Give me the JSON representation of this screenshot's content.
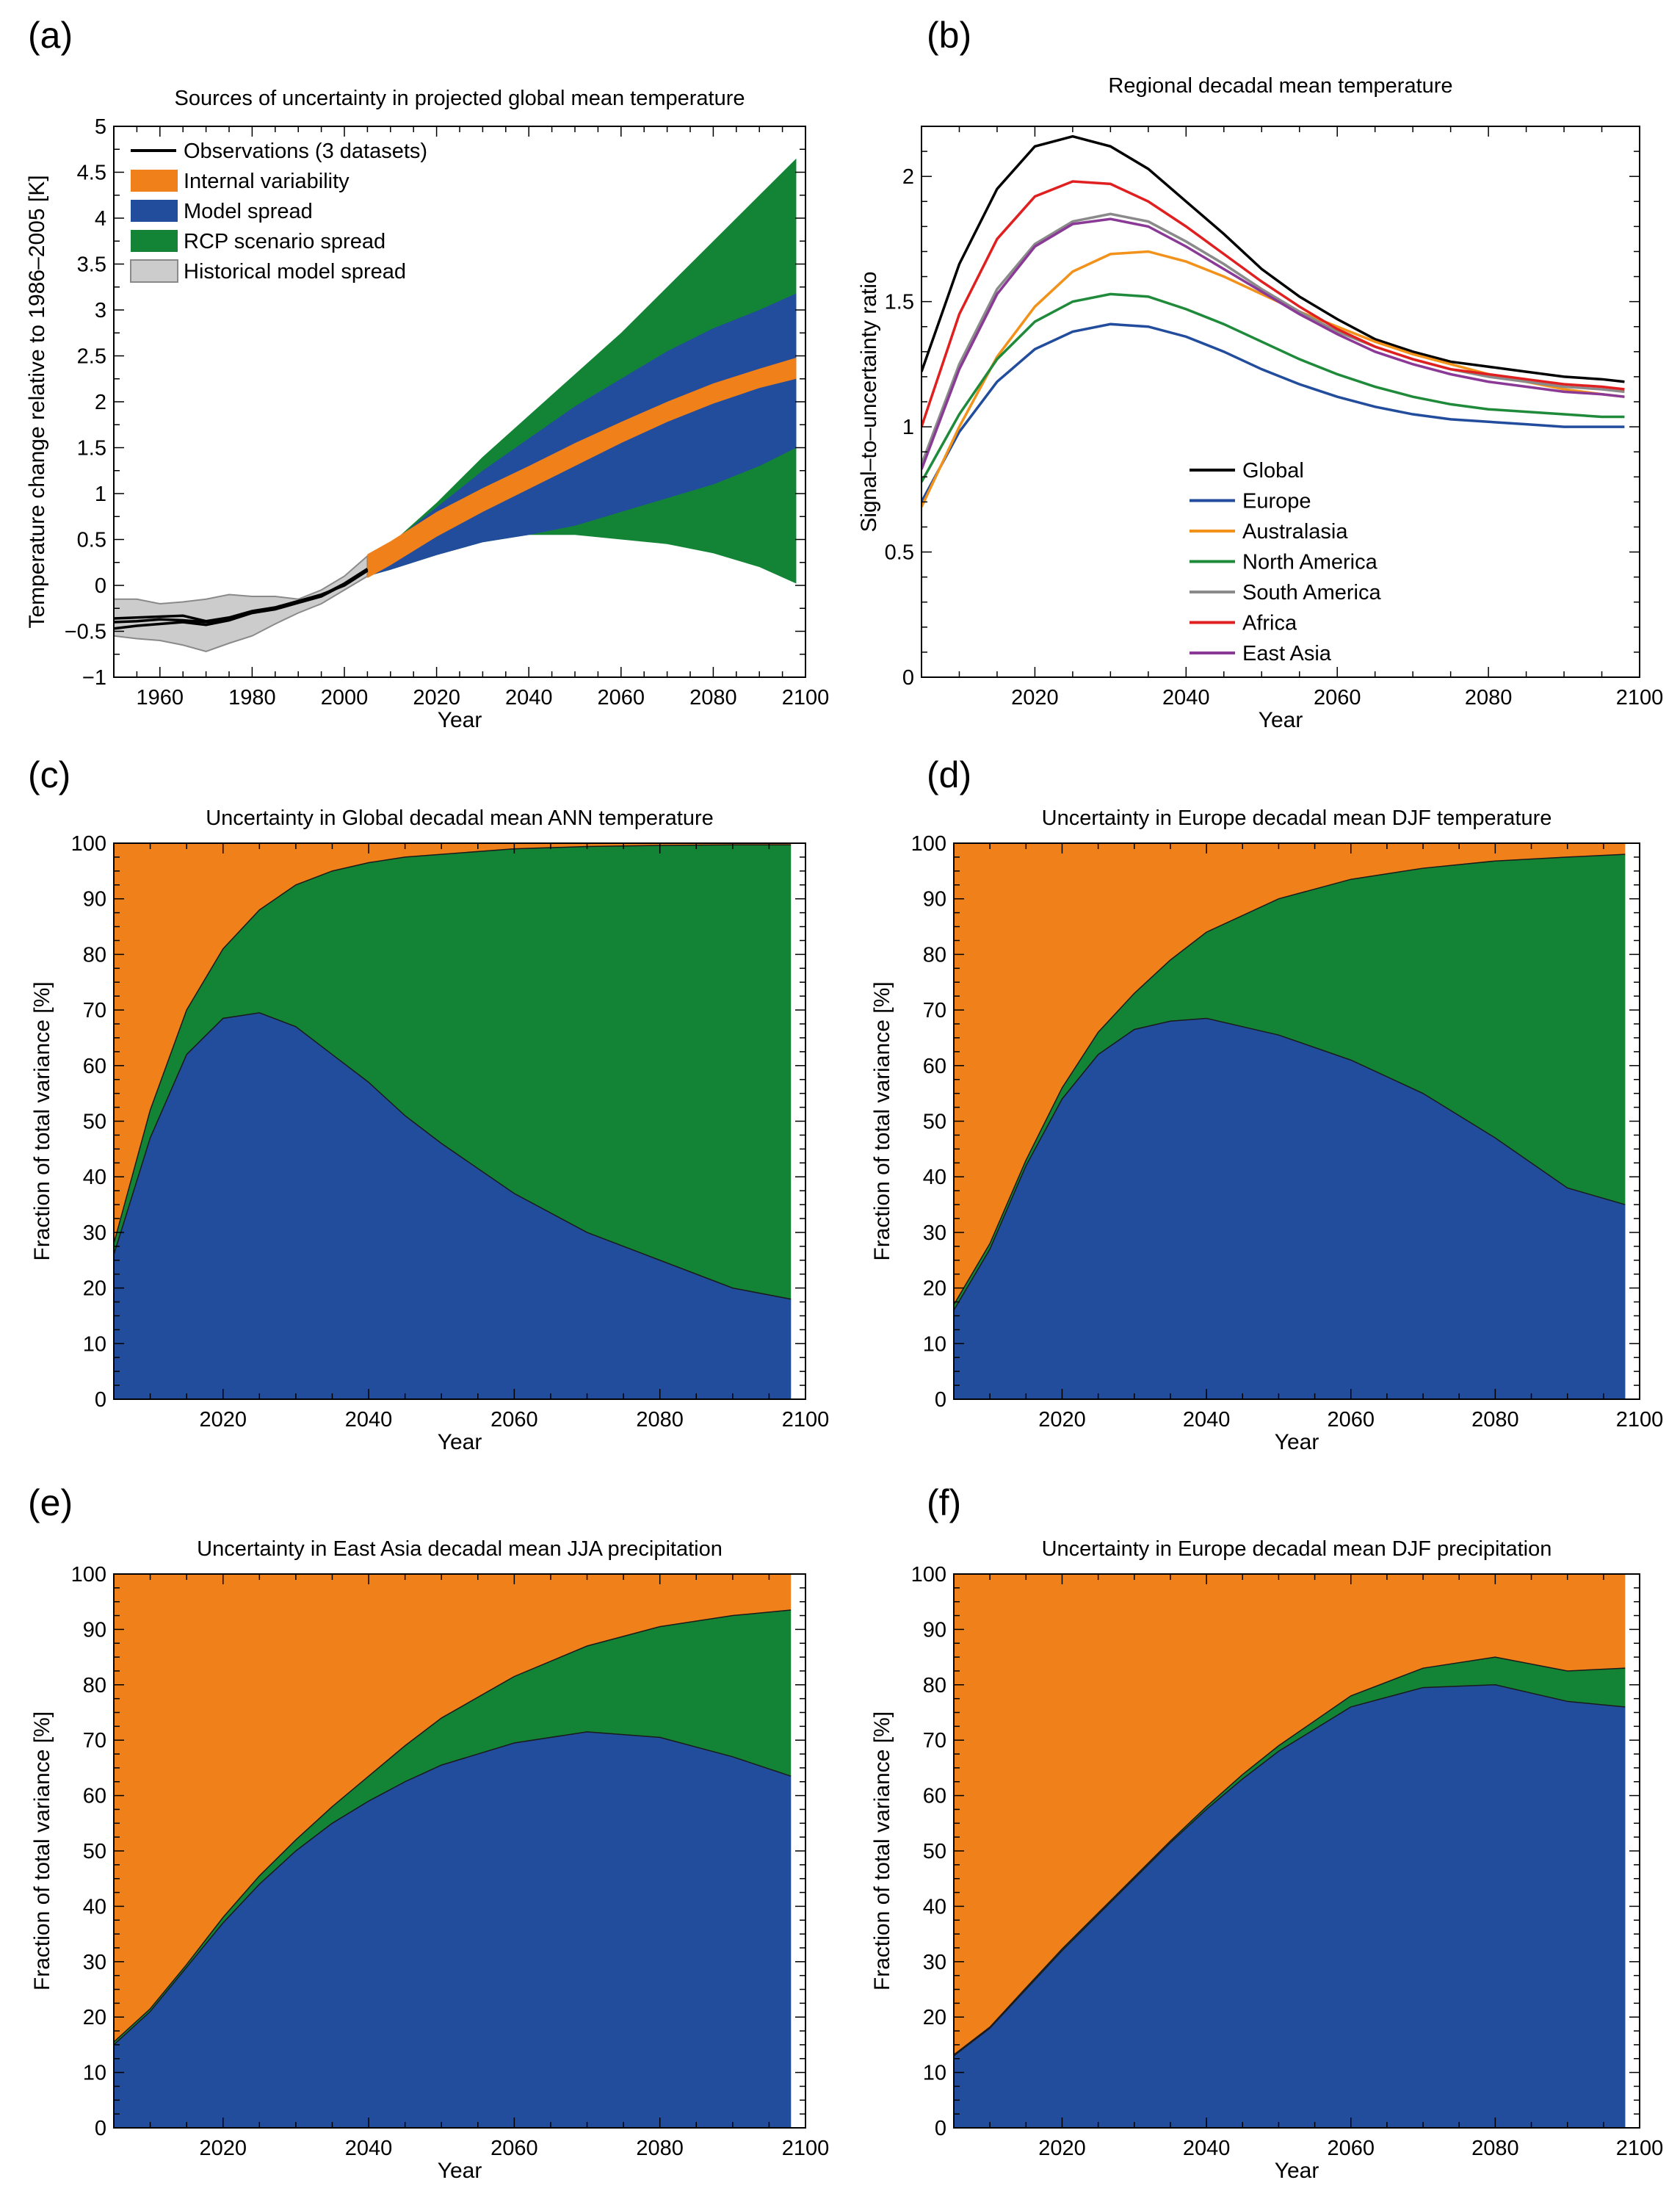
{
  "colors": {
    "internal": "#f0801a",
    "model": "#224c9c",
    "scenario": "#138436",
    "historical_fill": "#cccccc",
    "historical_edge": "#8a8a8a",
    "observations": "#000000",
    "global": "#000000",
    "europe": "#224c9c",
    "australasia": "#f2921a",
    "north_america": "#1e8a3a",
    "south_america": "#8a8a8a",
    "africa": "#e02020",
    "east_asia": "#8a3a96"
  },
  "chart_data": [
    {
      "id": "a",
      "panel_label": "(a)",
      "type": "area",
      "title": "Sources of uncertainty in projected global mean temperature",
      "xlabel": "Year",
      "ylabel": "Temperature change relative to 1986–2005 [K]",
      "xlim": [
        1950,
        2100
      ],
      "ylim": [
        -1,
        5
      ],
      "xticks": [
        1960,
        1980,
        2000,
        2020,
        2040,
        2060,
        2080,
        2100
      ],
      "yticks": [
        -1,
        -0.5,
        0,
        0.5,
        1,
        1.5,
        2,
        2.5,
        3,
        3.5,
        4,
        4.5,
        5
      ],
      "ytick_labels": [
        "−1",
        "−0.5",
        "0",
        "0.5",
        "1",
        "1.5",
        "2",
        "2.5",
        "3",
        "3.5",
        "4",
        "4.5",
        "5"
      ],
      "legend_position": "top-left",
      "legend": [
        "Observations (3 datasets)",
        "Internal variability",
        "Model spread",
        "RCP scenario spread",
        "Historical model spread"
      ],
      "historical": {
        "x": [
          1950,
          1955,
          1960,
          1965,
          1970,
          1975,
          1980,
          1985,
          1990,
          1995,
          2000,
          2005
        ],
        "lower": [
          -0.55,
          -0.58,
          -0.6,
          -0.65,
          -0.72,
          -0.63,
          -0.55,
          -0.42,
          -0.3,
          -0.2,
          -0.05,
          0.1
        ],
        "upper": [
          -0.15,
          -0.15,
          -0.2,
          -0.18,
          -0.15,
          -0.1,
          -0.12,
          -0.12,
          -0.15,
          -0.05,
          0.1,
          0.32
        ]
      },
      "observations": {
        "x": [
          1950,
          1955,
          1960,
          1965,
          1970,
          1975,
          1980,
          1985,
          1990,
          1995,
          2000,
          2005
        ],
        "series": [
          [
            -0.36,
            -0.35,
            -0.34,
            -0.33,
            -0.39,
            -0.35,
            -0.28,
            -0.24,
            -0.17,
            -0.1,
            0.0,
            0.16
          ],
          [
            -0.4,
            -0.39,
            -0.37,
            -0.38,
            -0.4,
            -0.37,
            -0.3,
            -0.25,
            -0.18,
            -0.11,
            0.02,
            0.18
          ],
          [
            -0.47,
            -0.44,
            -0.42,
            -0.4,
            -0.43,
            -0.38,
            -0.3,
            -0.26,
            -0.19,
            -0.12,
            0.01,
            0.17
          ]
        ]
      },
      "projection": {
        "x": [
          2005,
          2010,
          2020,
          2030,
          2040,
          2050,
          2060,
          2070,
          2080,
          2090,
          2098
        ],
        "scenario_lower": [
          0.1,
          0.17,
          0.33,
          0.47,
          0.55,
          0.55,
          0.5,
          0.45,
          0.35,
          0.2,
          0.02
        ],
        "scenario_upper": [
          0.3,
          0.45,
          0.9,
          1.4,
          1.85,
          2.3,
          2.75,
          3.25,
          3.75,
          4.25,
          4.65
        ],
        "model_lower": [
          0.1,
          0.17,
          0.33,
          0.47,
          0.55,
          0.65,
          0.8,
          0.95,
          1.1,
          1.3,
          1.5
        ],
        "model_upper": [
          0.3,
          0.45,
          0.85,
          1.25,
          1.6,
          1.95,
          2.25,
          2.55,
          2.8,
          3.0,
          3.18
        ],
        "internal_lower": [
          0.08,
          0.22,
          0.53,
          0.8,
          1.05,
          1.3,
          1.55,
          1.78,
          1.98,
          2.15,
          2.25
        ],
        "internal_upper": [
          0.34,
          0.48,
          0.8,
          1.06,
          1.3,
          1.55,
          1.78,
          2.0,
          2.2,
          2.36,
          2.48
        ]
      }
    },
    {
      "id": "b",
      "panel_label": "(b)",
      "type": "line",
      "title": "Regional decadal mean temperature",
      "xlabel": "Year",
      "ylabel": "Signal–to–uncertainty ratio",
      "xlim": [
        2005,
        2100
      ],
      "ylim": [
        0,
        2.2
      ],
      "xticks": [
        2020,
        2040,
        2060,
        2080,
        2100
      ],
      "yticks": [
        0,
        0.5,
        1,
        1.5,
        2
      ],
      "ytick_labels": [
        "0",
        "0.5",
        "1",
        "1.5",
        "2"
      ],
      "legend_position": "bottom-center",
      "x": [
        2005,
        2010,
        2015,
        2020,
        2025,
        2030,
        2035,
        2040,
        2045,
        2050,
        2055,
        2060,
        2065,
        2070,
        2075,
        2080,
        2085,
        2090,
        2095,
        2098
      ],
      "series": [
        {
          "name": "Global",
          "color": "global",
          "values": [
            1.22,
            1.65,
            1.95,
            2.12,
            2.16,
            2.12,
            2.03,
            1.9,
            1.77,
            1.63,
            1.52,
            1.43,
            1.35,
            1.3,
            1.26,
            1.24,
            1.22,
            1.2,
            1.19,
            1.18
          ]
        },
        {
          "name": "Europe",
          "color": "europe",
          "values": [
            0.7,
            0.98,
            1.18,
            1.31,
            1.38,
            1.41,
            1.4,
            1.36,
            1.3,
            1.23,
            1.17,
            1.12,
            1.08,
            1.05,
            1.03,
            1.02,
            1.01,
            1.0,
            1.0,
            1.0
          ]
        },
        {
          "name": "Australasia",
          "color": "australasia",
          "values": [
            0.68,
            1.0,
            1.28,
            1.48,
            1.62,
            1.69,
            1.7,
            1.66,
            1.6,
            1.53,
            1.46,
            1.4,
            1.34,
            1.29,
            1.25,
            1.21,
            1.18,
            1.15,
            1.13,
            1.12
          ]
        },
        {
          "name": "North America",
          "color": "north_america",
          "values": [
            0.78,
            1.05,
            1.27,
            1.42,
            1.5,
            1.53,
            1.52,
            1.47,
            1.41,
            1.34,
            1.27,
            1.21,
            1.16,
            1.12,
            1.09,
            1.07,
            1.06,
            1.05,
            1.04,
            1.04
          ]
        },
        {
          "name": "South America",
          "color": "south_america",
          "values": [
            0.85,
            1.25,
            1.55,
            1.73,
            1.82,
            1.85,
            1.82,
            1.74,
            1.65,
            1.55,
            1.46,
            1.38,
            1.32,
            1.27,
            1.23,
            1.2,
            1.18,
            1.16,
            1.15,
            1.14
          ]
        },
        {
          "name": "Africa",
          "color": "africa",
          "values": [
            1.0,
            1.45,
            1.75,
            1.92,
            1.98,
            1.97,
            1.9,
            1.8,
            1.69,
            1.58,
            1.48,
            1.39,
            1.32,
            1.27,
            1.23,
            1.21,
            1.19,
            1.17,
            1.16,
            1.15
          ]
        },
        {
          "name": "East Asia",
          "color": "east_asia",
          "values": [
            0.83,
            1.23,
            1.53,
            1.72,
            1.81,
            1.83,
            1.8,
            1.72,
            1.63,
            1.54,
            1.45,
            1.37,
            1.3,
            1.25,
            1.21,
            1.18,
            1.16,
            1.14,
            1.13,
            1.12
          ]
        }
      ]
    },
    {
      "id": "c",
      "panel_label": "(c)",
      "type": "area",
      "title": "Uncertainty in Global decadal mean ANN temperature",
      "xlabel": "Year",
      "ylabel": "Fraction of total variance  [%]",
      "xlim": [
        2005,
        2100
      ],
      "ylim": [
        0,
        100
      ],
      "xticks": [
        2020,
        2040,
        2060,
        2080,
        2100
      ],
      "yticks": [
        0,
        10,
        20,
        30,
        40,
        50,
        60,
        70,
        80,
        90,
        100
      ],
      "x": [
        2005,
        2010,
        2015,
        2020,
        2025,
        2030,
        2035,
        2040,
        2045,
        2050,
        2060,
        2070,
        2080,
        2090,
        2098
      ],
      "model_pct": [
        26,
        47,
        62,
        68.5,
        69.5,
        67,
        62,
        57,
        51,
        46,
        37,
        30,
        25,
        20,
        18
      ],
      "model_plus_scenario_pct": [
        28,
        52,
        70,
        81,
        88,
        92.5,
        95,
        96.5,
        97.5,
        98,
        99,
        99.4,
        99.6,
        99.7,
        99.7
      ],
      "last_x": 2098
    },
    {
      "id": "d",
      "panel_label": "(d)",
      "type": "area",
      "title": "Uncertainty in Europe decadal mean DJF temperature",
      "xlabel": "Year",
      "ylabel": "Fraction of total variance  [%]",
      "xlim": [
        2005,
        2100
      ],
      "ylim": [
        0,
        100
      ],
      "xticks": [
        2020,
        2040,
        2060,
        2080,
        2100
      ],
      "yticks": [
        0,
        10,
        20,
        30,
        40,
        50,
        60,
        70,
        80,
        90,
        100
      ],
      "x": [
        2005,
        2010,
        2015,
        2020,
        2025,
        2030,
        2035,
        2040,
        2045,
        2050,
        2060,
        2070,
        2080,
        2090,
        2098
      ],
      "model_pct": [
        16,
        27,
        42,
        54,
        62,
        66.5,
        68,
        68.5,
        67,
        65.5,
        61,
        55,
        47,
        38,
        35
      ],
      "model_plus_scenario_pct": [
        17,
        28,
        43,
        56,
        66,
        73,
        79,
        84,
        87,
        90,
        93.5,
        95.5,
        96.8,
        97.5,
        98
      ],
      "last_x": 2098
    },
    {
      "id": "e",
      "panel_label": "(e)",
      "type": "area",
      "title": "Uncertainty in East Asia decadal mean JJA precipitation",
      "xlabel": "Year",
      "ylabel": "Fraction of total variance  [%]",
      "xlim": [
        2005,
        2100
      ],
      "ylim": [
        0,
        100
      ],
      "xticks": [
        2020,
        2040,
        2060,
        2080,
        2100
      ],
      "yticks": [
        0,
        10,
        20,
        30,
        40,
        50,
        60,
        70,
        80,
        90,
        100
      ],
      "x": [
        2005,
        2010,
        2015,
        2020,
        2025,
        2030,
        2035,
        2040,
        2045,
        2050,
        2060,
        2070,
        2080,
        2090,
        2098
      ],
      "model_pct": [
        15,
        21,
        29,
        37,
        44,
        50,
        55,
        59,
        62.5,
        65.5,
        69.5,
        71.5,
        70.5,
        67,
        63.5
      ],
      "model_plus_scenario_pct": [
        15.5,
        21.5,
        29.5,
        38,
        45.5,
        52,
        58,
        63.5,
        69,
        74,
        81.5,
        87,
        90.5,
        92.5,
        93.5
      ],
      "last_x": 2098
    },
    {
      "id": "f",
      "panel_label": "(f)",
      "type": "area",
      "title": "Uncertainty in Europe decadal mean DJF precipitation",
      "xlabel": "Year",
      "ylabel": "Fraction of total variance  [%]",
      "xlim": [
        2005,
        2100
      ],
      "ylim": [
        0,
        100
      ],
      "xticks": [
        2020,
        2040,
        2060,
        2080,
        2100
      ],
      "yticks": [
        0,
        10,
        20,
        30,
        40,
        50,
        60,
        70,
        80,
        90,
        100
      ],
      "x": [
        2005,
        2010,
        2015,
        2020,
        2025,
        2030,
        2035,
        2040,
        2045,
        2050,
        2060,
        2070,
        2080,
        2090,
        2098
      ],
      "model_pct": [
        13,
        18,
        25,
        32,
        38.5,
        45,
        51.5,
        57.5,
        63,
        68,
        76,
        79.5,
        80,
        77,
        76
      ],
      "model_plus_scenario_pct": [
        13.2,
        18.2,
        25.3,
        32.3,
        38.8,
        45.3,
        51.8,
        58,
        63.8,
        69,
        78,
        83,
        85,
        82.5,
        83
      ],
      "last_x": 2098
    }
  ]
}
